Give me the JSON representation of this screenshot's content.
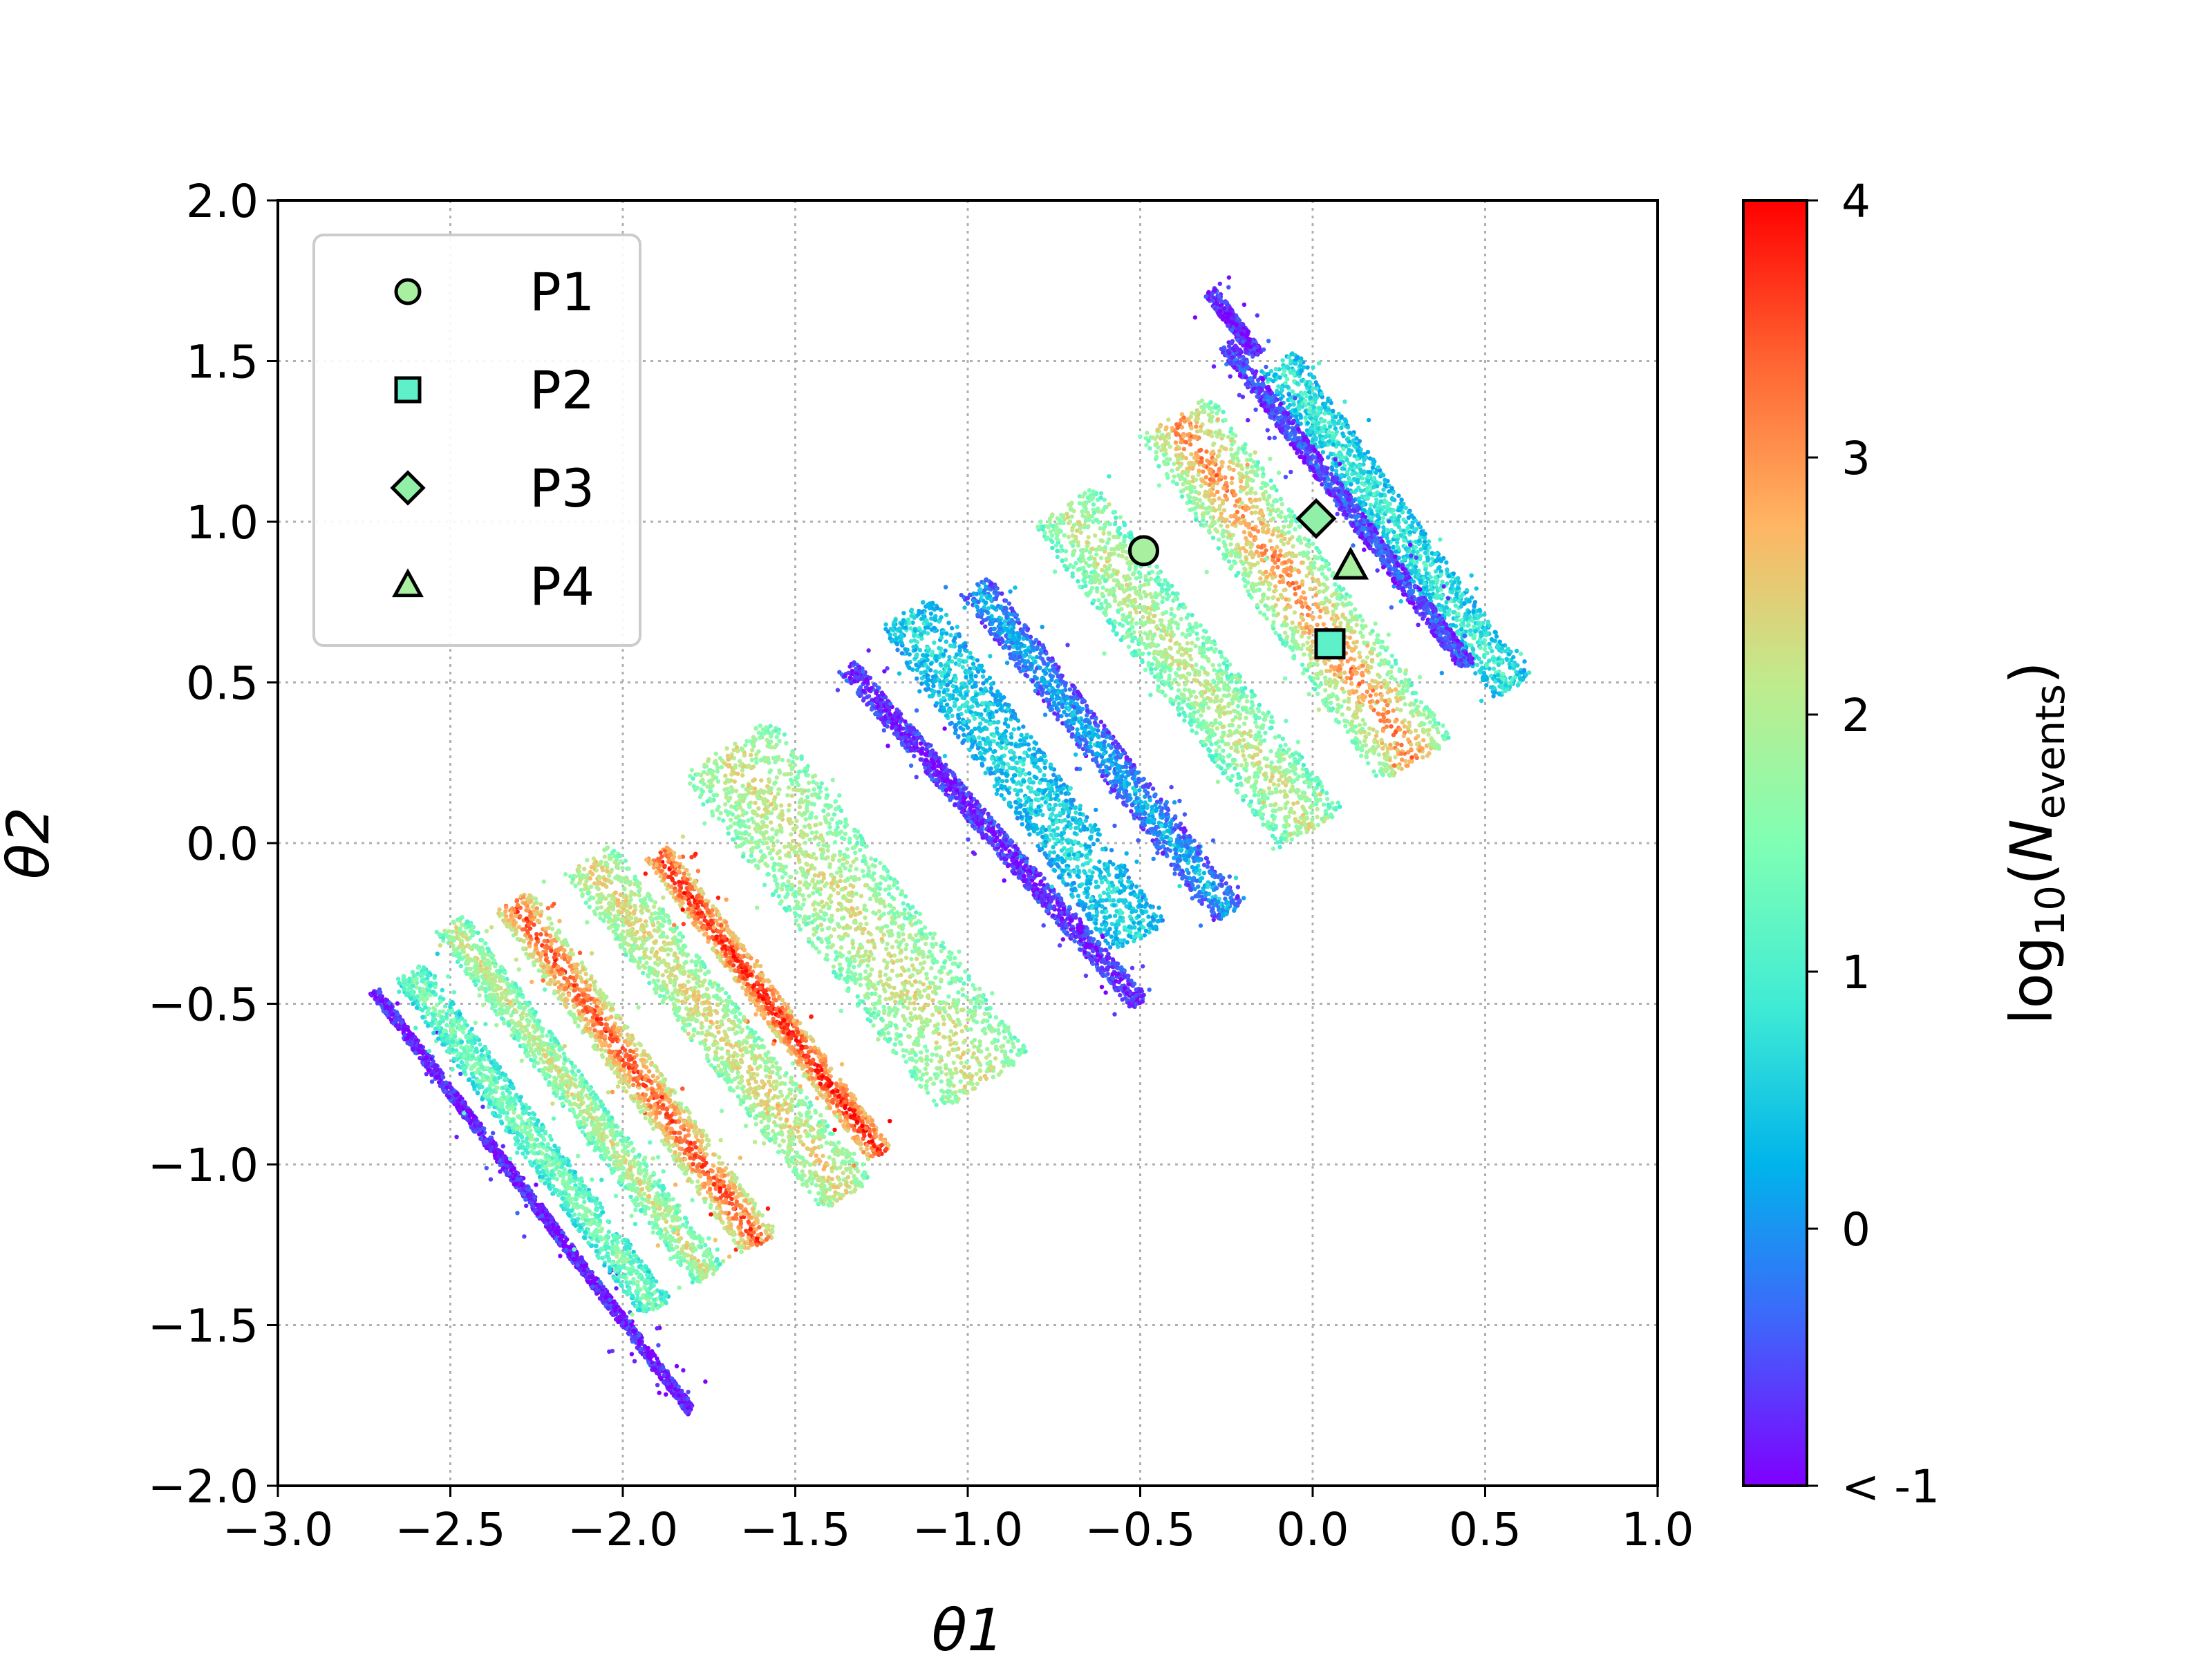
{
  "chart_data": {
    "type": "scatter",
    "xlabel": "θ1",
    "ylabel": "θ2",
    "xlim": [
      -3.0,
      1.0
    ],
    "ylim": [
      -2.0,
      2.0
    ],
    "xticks": [
      "−3.0",
      "−2.5",
      "−2.0",
      "−1.5",
      "−1.0",
      "−0.5",
      "0.0",
      "0.5",
      "1.0"
    ],
    "yticks": [
      "−2.0",
      "−1.5",
      "−1.0",
      "−0.5",
      "0.0",
      "0.5",
      "1.0",
      "1.5",
      "2.0"
    ],
    "grid": true,
    "legend_position": "upper-left",
    "colormap": "rainbow",
    "colorbar": {
      "title": "log10(Nevents)",
      "range": [
        -1,
        4
      ],
      "ticks": [
        "< -1",
        "0",
        "1",
        "2",
        "3",
        "4"
      ]
    },
    "markers": [
      {
        "name": "P1",
        "shape": "circle",
        "x": -0.49,
        "y": 0.91,
        "color": "#a8f0a0"
      },
      {
        "name": "P2",
        "shape": "square",
        "x": 0.05,
        "y": 0.62,
        "color": "#5ef0c8"
      },
      {
        "name": "P3",
        "shape": "diamond",
        "x": 0.01,
        "y": 1.01,
        "color": "#90f0a8"
      },
      {
        "name": "P4",
        "shape": "triangle",
        "x": 0.11,
        "y": 0.86,
        "color": "#a8f0a0"
      }
    ],
    "bands": [
      {
        "x0": -2.72,
        "y0": -0.46,
        "x1": -1.8,
        "y1": -1.77,
        "width": 0.03,
        "level_core": -0.9,
        "level_edge": -0.7
      },
      {
        "x0": -2.62,
        "y0": -0.4,
        "x1": -1.9,
        "y1": -1.45,
        "width": 0.1,
        "level_core": 1.6,
        "level_edge": 0.8
      },
      {
        "x0": -2.5,
        "y0": -0.25,
        "x1": -1.75,
        "y1": -1.35,
        "width": 0.1,
        "level_core": 2.3,
        "level_edge": 1.2
      },
      {
        "x0": -2.32,
        "y0": -0.18,
        "x1": -1.6,
        "y1": -1.25,
        "width": 0.12,
        "level_core": 3.6,
        "level_edge": 2.0
      },
      {
        "x0": -2.1,
        "y0": -0.05,
        "x1": -1.35,
        "y1": -1.1,
        "width": 0.17,
        "level_core": 2.5,
        "level_edge": 1.5
      },
      {
        "x0": -1.9,
        "y0": -0.03,
        "x1": -1.25,
        "y1": -0.97,
        "width": 0.08,
        "level_core": 3.9,
        "level_edge": 2.5
      },
      {
        "x0": -1.7,
        "y0": 0.3,
        "x1": -0.95,
        "y1": -0.75,
        "width": 0.32,
        "level_core": 2.3,
        "level_edge": 1.4
      },
      {
        "x0": -1.35,
        "y0": 0.55,
        "x1": -0.5,
        "y1": -0.5,
        "width": 0.06,
        "level_core": -0.9,
        "level_edge": -0.5
      },
      {
        "x0": -1.18,
        "y0": 0.72,
        "x1": -0.5,
        "y1": -0.3,
        "width": 0.18,
        "level_core": 0.7,
        "level_edge": 0.2
      },
      {
        "x0": -0.98,
        "y0": 0.8,
        "x1": -0.24,
        "y1": -0.22,
        "width": 0.1,
        "level_core": 0.4,
        "level_edge": -0.6
      },
      {
        "x0": -0.72,
        "y0": 1.05,
        "x1": 0.0,
        "y1": 0.04,
        "width": 0.22,
        "level_core": 2.2,
        "level_edge": 1.2
      },
      {
        "x0": -0.4,
        "y0": 1.33,
        "x1": 0.3,
        "y1": 0.25,
        "width": 0.25,
        "level_core": 3.2,
        "level_edge": 1.3
      },
      {
        "x0": -0.3,
        "y0": 1.72,
        "x1": -0.16,
        "y1": 1.52,
        "width": 0.04,
        "level_core": -0.9,
        "level_edge": -0.6
      },
      {
        "x0": -0.1,
        "y0": 1.5,
        "x1": 0.58,
        "y1": 0.48,
        "width": 0.12,
        "level_core": 1.0,
        "level_edge": 0.3
      },
      {
        "x0": -0.25,
        "y0": 1.55,
        "x1": 0.45,
        "y1": 0.55,
        "width": 0.05,
        "level_core": -0.3,
        "level_edge": -0.8
      }
    ]
  }
}
